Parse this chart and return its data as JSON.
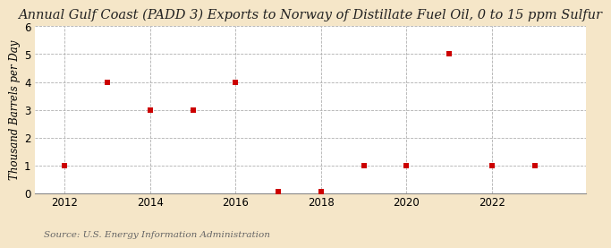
{
  "title": "Annual Gulf Coast (PADD 3) Exports to Norway of Distillate Fuel Oil, 0 to 15 ppm Sulfur",
  "ylabel": "Thousand Barrels per Day",
  "source": "Source: U.S. Energy Information Administration",
  "outer_bg": "#f5e6c8",
  "plot_bg": "#ffffff",
  "marker_color": "#cc0000",
  "years": [
    2012,
    2013,
    2014,
    2015,
    2016,
    2017,
    2018,
    2019,
    2020,
    2021,
    2022,
    2023
  ],
  "values": [
    1,
    4,
    3,
    3,
    4,
    0.05,
    0.05,
    1,
    1,
    5,
    1,
    1
  ],
  "xlim": [
    2011.3,
    2024.2
  ],
  "ylim": [
    0,
    6
  ],
  "yticks": [
    0,
    1,
    2,
    3,
    4,
    5,
    6
  ],
  "xticks": [
    2012,
    2014,
    2016,
    2018,
    2020,
    2022
  ],
  "grid_color": "#b0b0b0",
  "title_fontsize": 10.5,
  "label_fontsize": 8.5,
  "tick_fontsize": 8.5,
  "source_fontsize": 7.5
}
